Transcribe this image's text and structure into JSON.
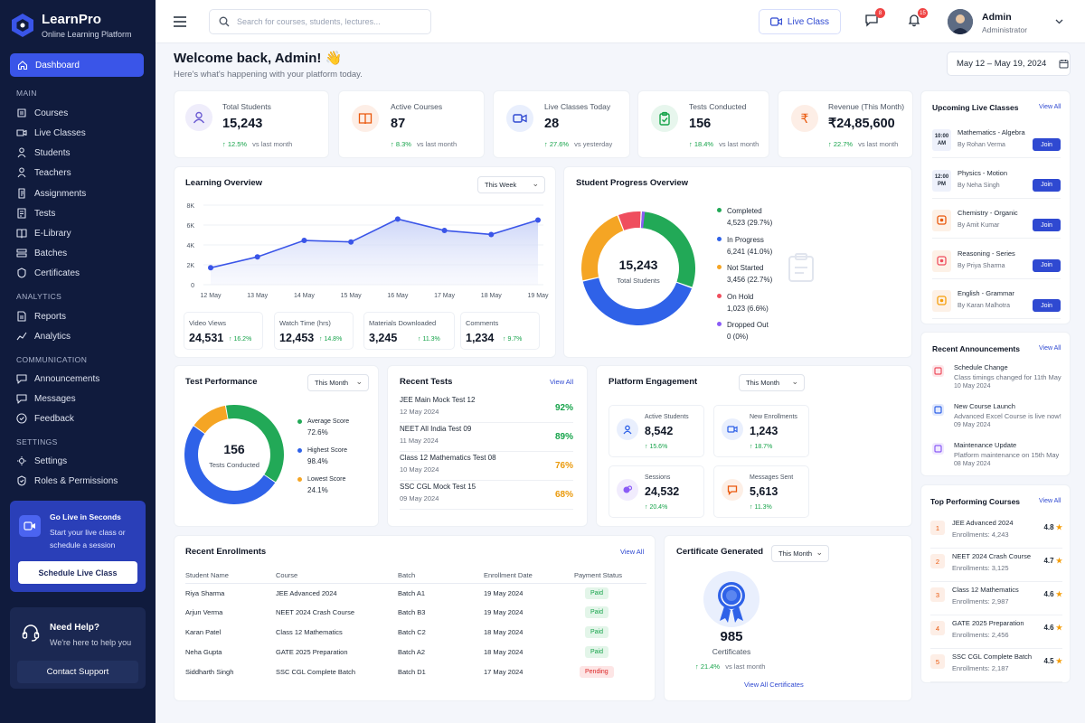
{
  "brand": {
    "name": "LearnPro",
    "tagline": "Online Learning Platform"
  },
  "sidebar": {
    "active": "Dashboard",
    "sections": {
      "main": "MAIN",
      "analytics": "ANALYTICS",
      "communication": "COMMUNICATION",
      "settings": "SETTINGS"
    },
    "items": [
      "Courses",
      "Live Classes",
      "Students",
      "Teachers",
      "Assignments",
      "Tests",
      "E-Library",
      "Batches",
      "Certificates",
      "Reports",
      "Analytics",
      "Announcements",
      "Messages",
      "Feedback",
      "Settings",
      "Roles & Permissions"
    ],
    "golive": {
      "title": "Go Live in Seconds",
      "desc": "Start your live class or schedule a session",
      "button": "Schedule Live Class"
    },
    "help": {
      "title": "Need Help?",
      "desc": "We're here to help you",
      "button": "Contact Support"
    }
  },
  "topbar": {
    "search_placeholder": "Search for courses, students, lectures...",
    "live_class": "Live Class",
    "messages_count": "8",
    "notifications_count": "15",
    "user_name": "Admin",
    "user_role": "Administrator"
  },
  "welcome": {
    "title": "Welcome back, Admin! 👋",
    "subtitle": "Here's what's happening with your platform today.",
    "date_range": "May 12 – May 19, 2024"
  },
  "stats": [
    {
      "label": "Total Students",
      "value": "15,243",
      "trend": "↑ 12.5%",
      "note": "vs last month",
      "color": "#6d5dd3"
    },
    {
      "label": "Active Courses",
      "value": "87",
      "trend": "↑ 8.3%",
      "note": "vs last month",
      "color": "#ea580c"
    },
    {
      "label": "Live Classes Today",
      "value": "28",
      "trend": "↑ 27.6%",
      "note": "vs yesterday",
      "color": "#2f49d1"
    },
    {
      "label": "Tests Conducted",
      "value": "156",
      "trend": "↑ 18.4%",
      "note": "vs last month",
      "color": "#16a34a"
    },
    {
      "label": "Revenue (This Month)",
      "value": "₹24,85,600",
      "trend": "↑ 22.7%",
      "note": "vs last month",
      "color": "#ea580c"
    }
  ],
  "learning": {
    "title": "Learning Overview",
    "period": "This Week",
    "minis": [
      {
        "label": "Video Views",
        "value": "24,531",
        "trend": "↑ 16.2%"
      },
      {
        "label": "Watch Time (hrs)",
        "value": "12,453",
        "trend": "↑ 14.8%"
      },
      {
        "label": "Materials Downloaded",
        "value": "3,245",
        "trend": "↑ 11.3%"
      },
      {
        "label": "Comments",
        "value": "1,234",
        "trend": "↑ 9.7%"
      }
    ]
  },
  "chart_data": [
    {
      "type": "area",
      "title": "Learning Overview",
      "x": [
        "12 May",
        "13 May",
        "14 May",
        "15 May",
        "16 May",
        "17 May",
        "18 May",
        "19 May"
      ],
      "values": [
        1700,
        2800,
        4450,
        4300,
        6600,
        5450,
        5050,
        6500
      ],
      "y_ticks": [
        "0",
        "2K",
        "4K",
        "6K",
        "8K"
      ],
      "ylim": [
        0,
        8000
      ],
      "color": "#3a55e8"
    },
    {
      "type": "pie",
      "title": "Student Progress Overview",
      "center_value": "15,243",
      "center_label": "Total Students",
      "slices": [
        {
          "name": "Completed",
          "value": 4523,
          "pct": "29.7%",
          "color": "#22a957"
        },
        {
          "name": "In Progress",
          "value": 6241,
          "pct": "41.0%",
          "color": "#2f62e8"
        },
        {
          "name": "Not Started",
          "value": 3456,
          "pct": "22.7%",
          "color": "#f5a524"
        },
        {
          "name": "On Hold",
          "value": 1023,
          "pct": "6.6%",
          "color": "#ef4e5e"
        },
        {
          "name": "Dropped Out",
          "value": 0,
          "pct": "0%",
          "color": "#8b5cf6"
        }
      ]
    },
    {
      "type": "pie",
      "title": "Test Performance",
      "center_value": "156",
      "center_label": "Tests Conducted",
      "slices": [
        {
          "name": "Average Score",
          "value": 72.6,
          "display": "72.6%",
          "color": "#22a957"
        },
        {
          "name": "Highest Score",
          "value": 98.4,
          "display": "98.4%",
          "color": "#2f62e8"
        },
        {
          "name": "Lowest Score",
          "value": 24.1,
          "display": "24.1%",
          "color": "#f5a524"
        }
      ]
    }
  ],
  "progress": {
    "title": "Student Progress Overview"
  },
  "test_perf": {
    "title": "Test Performance",
    "period": "This Month"
  },
  "recent_tests": {
    "title": "Recent Tests",
    "view_all": "View All",
    "items": [
      {
        "name": "JEE Main Mock Test 12",
        "date": "12 May 2024",
        "pct": "92%",
        "color": "#16a34a"
      },
      {
        "name": "NEET All India Test 09",
        "date": "11 May 2024",
        "pct": "89%",
        "color": "#16a34a"
      },
      {
        "name": "Class 12 Mathematics Test 08",
        "date": "10 May 2024",
        "pct": "76%",
        "color": "#ea9a0c"
      },
      {
        "name": "SSC CGL Mock Test 15",
        "date": "09 May 2024",
        "pct": "68%",
        "color": "#ea9a0c"
      }
    ]
  },
  "engagement": {
    "title": "Platform Engagement",
    "period": "This Month",
    "items": [
      {
        "label": "Active Students",
        "value": "8,542",
        "trend": "↑ 15.6%",
        "color": "#2f62e8",
        "bg": "#e9effd"
      },
      {
        "label": "New Enrollments",
        "value": "1,243",
        "trend": "↑ 18.7%",
        "color": "#2f62e8",
        "bg": "#e9effd"
      },
      {
        "label": "Sessions",
        "value": "24,532",
        "trend": "↑ 20.4%",
        "color": "#8b5cf6",
        "bg": "#f1ecfd"
      },
      {
        "label": "Messages Sent",
        "value": "5,613",
        "trend": "↑ 11.3%",
        "color": "#ea580c",
        "bg": "#fdefe6"
      }
    ]
  },
  "enrollments": {
    "title": "Recent Enrollments",
    "view_all": "View All",
    "headers": [
      "Student Name",
      "Course",
      "Batch",
      "Enrollment Date",
      "Payment Status"
    ],
    "rows": [
      [
        "Riya Sharma",
        "JEE Advanced 2024",
        "Batch A1",
        "19 May 2024",
        "Paid"
      ],
      [
        "Arjun Verma",
        "NEET 2024 Crash Course",
        "Batch B3",
        "19 May 2024",
        "Paid"
      ],
      [
        "Karan Patel",
        "Class 12 Mathematics",
        "Batch C2",
        "18 May 2024",
        "Paid"
      ],
      [
        "Neha Gupta",
        "GATE 2025 Preparation",
        "Batch A2",
        "18 May 2024",
        "Paid"
      ],
      [
        "Siddharth Singh",
        "SSC CGL Complete Batch",
        "Batch D1",
        "17 May 2024",
        "Pending"
      ]
    ]
  },
  "certificates": {
    "title": "Certificate Generated",
    "period": "This Month",
    "value": "985",
    "label": "Certificates",
    "trend": "↑ 21.4%",
    "note": "vs last month",
    "link": "View All Certificates"
  },
  "upcoming": {
    "title": "Upcoming Live Classes",
    "view_all": "View All",
    "join": "Join",
    "items": [
      {
        "time": "10:00 AM",
        "name": "Mathematics - Algebra",
        "by": "By Rohan Verma"
      },
      {
        "time": "12:00 PM",
        "name": "Physics - Motion",
        "by": "By Neha Singh"
      },
      {
        "time": "",
        "name": "Chemistry - Organic",
        "by": "By Amit Kumar"
      },
      {
        "time": "",
        "name": "Reasoning - Series",
        "by": "By Priya Sharma"
      },
      {
        "time": "",
        "name": "English - Grammar",
        "by": "By Karan Malhotra"
      }
    ]
  },
  "announcements": {
    "title": "Recent Announcements",
    "view_all": "View All",
    "items": [
      {
        "name": "Schedule Change",
        "desc": "Class timings changed for 11th May",
        "date": "10 May 2024",
        "color": "#ef4e5e"
      },
      {
        "name": "New Course Launch",
        "desc": "Advanced Excel Course is live now!",
        "date": "09 May 2024",
        "color": "#2f62e8"
      },
      {
        "name": "Maintenance Update",
        "desc": "Platform maintenance on 15th May",
        "date": "08 May 2024",
        "color": "#8b5cf6"
      }
    ]
  },
  "top_courses": {
    "title": "Top Performing Courses",
    "view_all": "View All",
    "items": [
      {
        "rank": "1",
        "name": "JEE Advanced 2024",
        "enroll": "Enrollments: 4,243",
        "rating": "4.8"
      },
      {
        "rank": "2",
        "name": "NEET 2024 Crash Course",
        "enroll": "Enrollments: 3,125",
        "rating": "4.7"
      },
      {
        "rank": "3",
        "name": "Class 12 Mathematics",
        "enroll": "Enrollments: 2,987",
        "rating": "4.6"
      },
      {
        "rank": "4",
        "name": "GATE 2025 Preparation",
        "enroll": "Enrollments: 2,456",
        "rating": "4.6"
      },
      {
        "rank": "5",
        "name": "SSC CGL Complete Batch",
        "enroll": "Enrollments: 2,187",
        "rating": "4.5"
      }
    ]
  }
}
